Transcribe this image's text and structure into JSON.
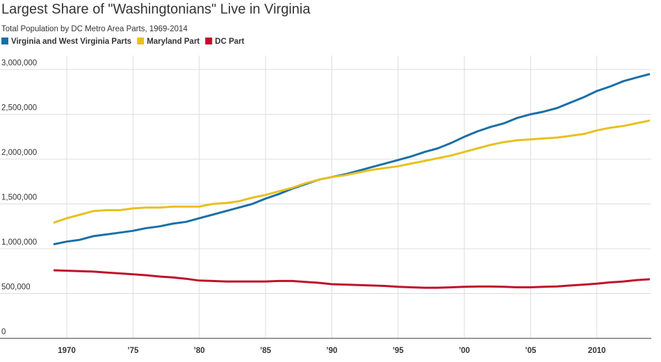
{
  "chart_data": {
    "type": "line",
    "title": "Largest Share of \"Washingtonians\" Live in Virginia",
    "subtitle": "Total Population by DC Metro Area Parts, 1969-2014",
    "x": [
      1969,
      1970,
      1971,
      1972,
      1973,
      1974,
      1975,
      1976,
      1977,
      1978,
      1979,
      1980,
      1981,
      1982,
      1983,
      1984,
      1985,
      1986,
      1987,
      1988,
      1989,
      1990,
      1991,
      1992,
      1993,
      1994,
      1995,
      1996,
      1997,
      1998,
      1999,
      2000,
      2001,
      2002,
      2003,
      2004,
      2005,
      2006,
      2007,
      2008,
      2009,
      2010,
      2011,
      2012,
      2013,
      2014
    ],
    "series": [
      {
        "name": "Virginia and West Virginia Parts",
        "color": "#1a6fa6",
        "values": [
          1050000,
          1080000,
          1100000,
          1140000,
          1160000,
          1180000,
          1200000,
          1230000,
          1250000,
          1280000,
          1300000,
          1340000,
          1380000,
          1420000,
          1460000,
          1500000,
          1560000,
          1610000,
          1670000,
          1720000,
          1770000,
          1800000,
          1830000,
          1870000,
          1910000,
          1950000,
          1990000,
          2030000,
          2080000,
          2120000,
          2180000,
          2250000,
          2310000,
          2360000,
          2400000,
          2460000,
          2500000,
          2530000,
          2570000,
          2630000,
          2690000,
          2760000,
          2810000,
          2870000,
          2910000,
          2950000
        ]
      },
      {
        "name": "Maryland Part",
        "color": "#e8c01f",
        "values": [
          1290000,
          1340000,
          1380000,
          1420000,
          1430000,
          1430000,
          1450000,
          1460000,
          1460000,
          1470000,
          1470000,
          1470000,
          1500000,
          1510000,
          1530000,
          1570000,
          1600000,
          1640000,
          1680000,
          1730000,
          1770000,
          1800000,
          1820000,
          1850000,
          1880000,
          1900000,
          1920000,
          1950000,
          1980000,
          2010000,
          2040000,
          2080000,
          2120000,
          2160000,
          2190000,
          2210000,
          2220000,
          2230000,
          2240000,
          2260000,
          2280000,
          2320000,
          2350000,
          2370000,
          2400000,
          2430000
        ]
      },
      {
        "name": "DC Part",
        "color": "#c0102a",
        "values": [
          760000,
          755000,
          750000,
          745000,
          735000,
          725000,
          715000,
          705000,
          690000,
          680000,
          665000,
          645000,
          640000,
          635000,
          635000,
          635000,
          635000,
          640000,
          640000,
          630000,
          620000,
          605000,
          600000,
          595000,
          590000,
          585000,
          575000,
          570000,
          565000,
          565000,
          570000,
          575000,
          578000,
          578000,
          575000,
          570000,
          570000,
          575000,
          580000,
          590000,
          600000,
          610000,
          625000,
          635000,
          650000,
          660000
        ]
      }
    ],
    "xlim": [
      1969,
      2014
    ],
    "xticks": [
      1970,
      {
        "value": 1975,
        "label": "’75"
      },
      {
        "value": 1980,
        "label": "’80"
      },
      {
        "value": 1985,
        "label": "’85"
      },
      {
        "value": 1990,
        "label": "’90"
      },
      {
        "value": 1995,
        "label": "’95"
      },
      {
        "value": 2000,
        "label": "’00"
      },
      {
        "value": 2005,
        "label": "’05"
      },
      2010
    ],
    "ylim": [
      0,
      3000000
    ],
    "yticks": [
      0,
      {
        "value": 500000,
        "label": "500,000"
      },
      {
        "value": 1000000,
        "label": "1,000,000"
      },
      {
        "value": 1500000,
        "label": "1,500,000"
      },
      {
        "value": 2000000,
        "label": "2,000,000"
      },
      {
        "value": 2500000,
        "label": "2,500,000"
      },
      {
        "value": 3000000,
        "label": "3,000,000"
      }
    ],
    "grid": true
  }
}
